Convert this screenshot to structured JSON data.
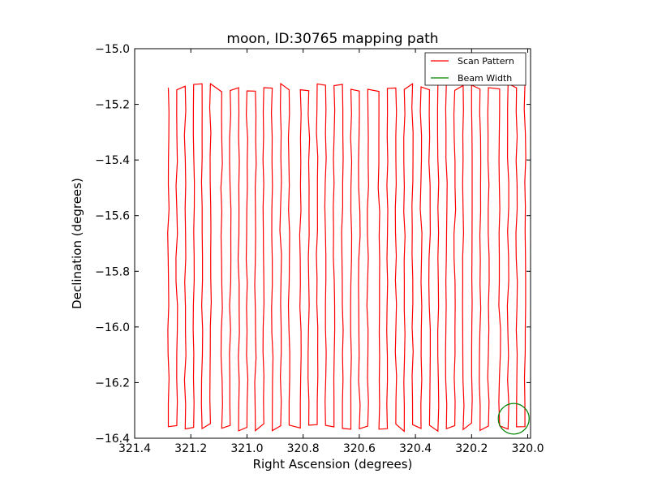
{
  "chart_data": {
    "type": "line",
    "title": "moon, ID:30765 mapping path",
    "xlabel": "Right Ascension (degrees)",
    "ylabel": "Declination (degrees)",
    "xlim": [
      321.4,
      319.99
    ],
    "ylim": [
      -16.4,
      -15.0
    ],
    "x_inverted": true,
    "xticks": [
      321.4,
      321.2,
      321.0,
      320.8,
      320.6,
      320.4,
      320.2,
      320.0
    ],
    "xtick_labels": [
      "321.4",
      "321.2",
      "321.0",
      "320.8",
      "320.6",
      "320.4",
      "320.2",
      "320.0"
    ],
    "yticks": [
      -15.0,
      -15.2,
      -15.4,
      -15.6,
      -15.8,
      -16.0,
      -16.2,
      -16.4
    ],
    "ytick_labels": [
      "−15.0",
      "−15.2",
      "−15.4",
      "−15.6",
      "−15.8",
      "−16.0",
      "−16.2",
      "−16.4"
    ],
    "grid": false,
    "legend_position": "top-right",
    "series": [
      {
        "name": "Scan Pattern",
        "color": "#ff0000",
        "scan_legs_ra": [
          321.28,
          321.25,
          321.22,
          321.19,
          321.16,
          321.13,
          321.09,
          321.06,
          321.03,
          321.0,
          320.97,
          320.94,
          320.91,
          320.88,
          320.85,
          320.81,
          320.78,
          320.75,
          320.72,
          320.69,
          320.66,
          320.63,
          320.6,
          320.57,
          320.53,
          320.5,
          320.47,
          320.44,
          320.41,
          320.38,
          320.35,
          320.32,
          320.29,
          320.26,
          320.23,
          320.2,
          320.17,
          320.14,
          320.1,
          320.07,
          320.04,
          320.01
        ],
        "dec_top": -15.14,
        "dec_bottom": -16.36
      },
      {
        "name": "Beam Width",
        "color": "#008000",
        "center_ra": 320.05,
        "center_dec": -16.33,
        "radius_deg": 0.055
      }
    ]
  }
}
